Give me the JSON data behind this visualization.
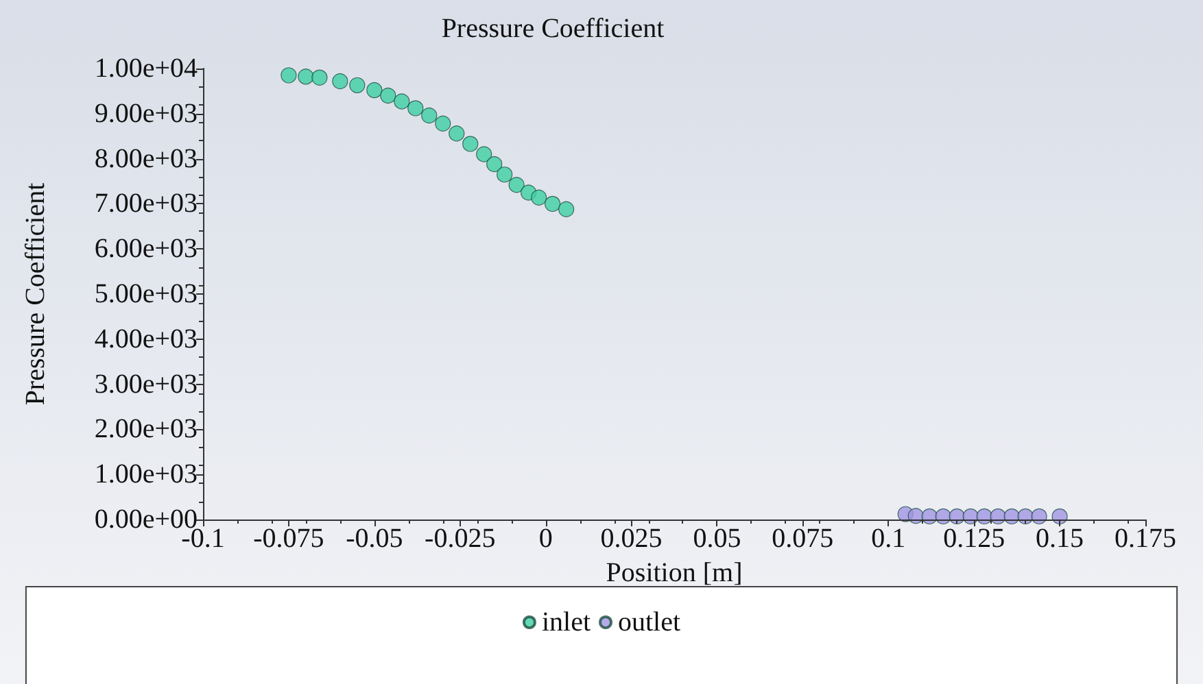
{
  "chart_data": {
    "type": "scatter",
    "title": "Pressure Coefficient",
    "xlabel": "Position [m]",
    "ylabel": "Pressure Coefficient",
    "series": [
      {
        "name": "inlet",
        "color": "#3ecfa2",
        "x": [
          -0.075,
          -0.07,
          -0.066,
          -0.06,
          -0.055,
          -0.05,
          -0.046,
          -0.042,
          -0.038,
          -0.034,
          -0.03,
          -0.026,
          -0.022,
          -0.018,
          -0.015,
          -0.012,
          -0.0085,
          -0.005,
          -0.002,
          0.002,
          0.006
        ],
        "values": [
          9850,
          9820,
          9800,
          9720,
          9630,
          9520,
          9400,
          9270,
          9120,
          8960,
          8780,
          8560,
          8330,
          8100,
          7880,
          7650,
          7420,
          7250,
          7140,
          7000,
          6880
        ]
      },
      {
        "name": "outlet",
        "color": "#a195e3",
        "x": [
          0.105,
          0.108,
          0.112,
          0.116,
          0.12,
          0.124,
          0.128,
          0.132,
          0.136,
          0.14,
          0.144,
          0.15
        ],
        "values": [
          120,
          80,
          70,
          70,
          70,
          70,
          70,
          70,
          70,
          70,
          70,
          70
        ]
      }
    ],
    "xlim": [
      -0.1,
      0.175
    ],
    "xticks": [
      -0.1,
      -0.075,
      -0.05,
      -0.025,
      0,
      0.025,
      0.05,
      0.075,
      0.1,
      0.125,
      0.15,
      0.175
    ],
    "ylim": [
      0,
      10000
    ],
    "yticks": [
      {
        "value": 0,
        "label": "0.00e+00"
      },
      {
        "value": 1000,
        "label": "1.00e+03"
      },
      {
        "value": 2000,
        "label": "2.00e+03"
      },
      {
        "value": 3000,
        "label": "3.00e+03"
      },
      {
        "value": 4000,
        "label": "4.00e+03"
      },
      {
        "value": 5000,
        "label": "5.00e+03"
      },
      {
        "value": 6000,
        "label": "6.00e+03"
      },
      {
        "value": 7000,
        "label": "7.00e+03"
      },
      {
        "value": 8000,
        "label": "8.00e+03"
      },
      {
        "value": 9000,
        "label": "9.00e+03"
      },
      {
        "value": 10000,
        "label": "1.00e+04"
      }
    ],
    "grid": false,
    "legend": "bottom",
    "marker": "circle"
  }
}
